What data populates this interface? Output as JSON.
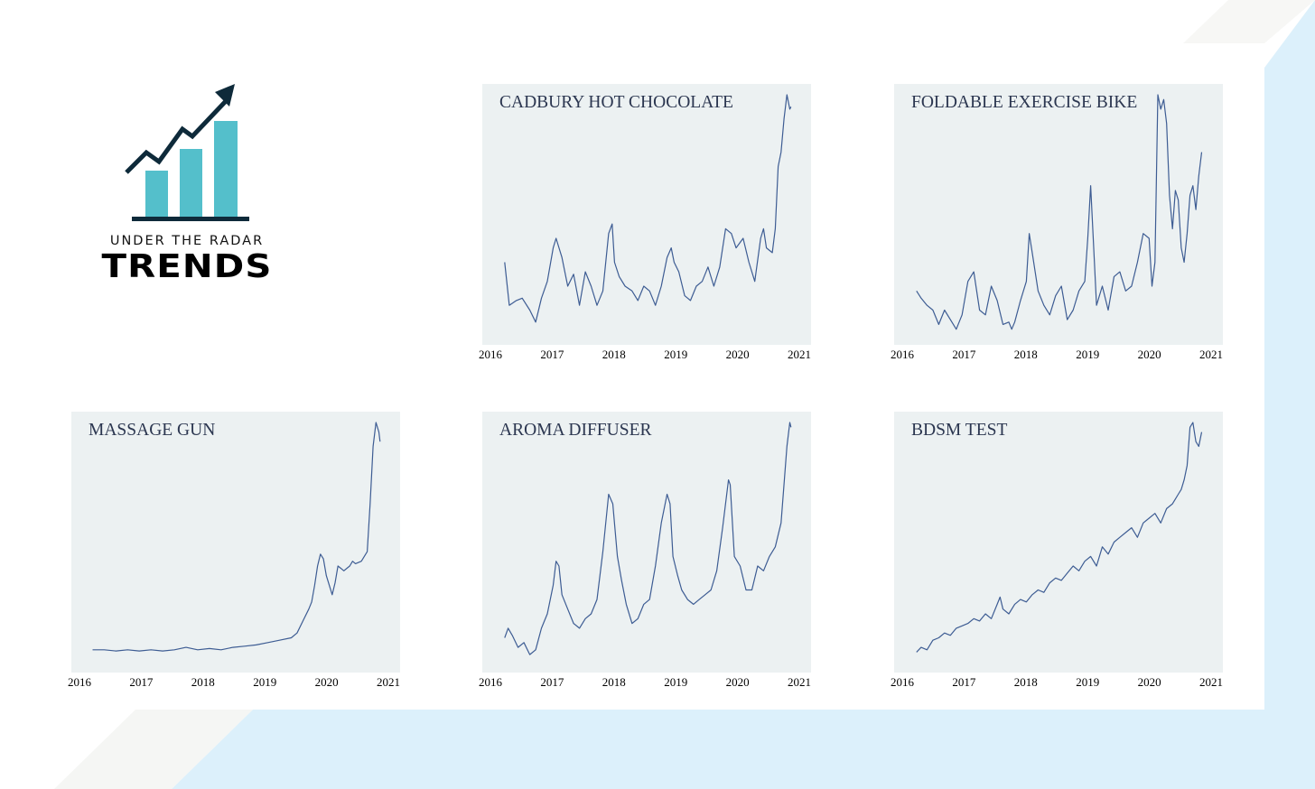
{
  "logo": {
    "subtitle": "UNDER THE RADAR",
    "title": "TRENDS",
    "bar_color": "#54bfcb",
    "arrow_color": "#0e2a3a"
  },
  "colors": {
    "panel_bg": "#ecf1f2",
    "line": "#3d5c93",
    "title_text": "#2b3650",
    "bg_blue": "#dcf0fb"
  },
  "chart_data": [
    {
      "type": "line",
      "title": "CADBURY HOT CHOCOLATE",
      "xlim": [
        2016,
        2021.1
      ],
      "ylim": [
        0,
        100
      ],
      "xticks": [
        "2016",
        "2017",
        "2018",
        "2019",
        "2020",
        "2021"
      ],
      "series": [
        {
          "x": [
            2016.12,
            2016.2,
            2016.32,
            2016.42,
            2016.55,
            2016.65,
            2016.75,
            2016.85,
            2016.95,
            2017.0,
            2017.1,
            2017.2,
            2017.3,
            2017.4,
            2017.5,
            2017.6,
            2017.7,
            2017.8,
            2017.9,
            2017.96,
            2018.0,
            2018.08,
            2018.18,
            2018.3,
            2018.4,
            2018.5,
            2018.6,
            2018.7,
            2018.8,
            2018.9,
            2018.97,
            2019.02,
            2019.1,
            2019.2,
            2019.3,
            2019.4,
            2019.5,
            2019.6,
            2019.7,
            2019.8,
            2019.9,
            2020.0,
            2020.08,
            2020.2,
            2020.3,
            2020.4,
            2020.5,
            2020.55,
            2020.6,
            2020.7,
            2020.75,
            2020.8,
            2020.85,
            2020.9,
            2020.95,
            2021.0,
            2021.02
          ],
          "y": [
            30,
            12,
            14,
            15,
            10,
            5,
            15,
            22,
            36,
            40,
            32,
            20,
            25,
            12,
            26,
            20,
            12,
            18,
            42,
            46,
            30,
            24,
            20,
            18,
            14,
            20,
            18,
            12,
            20,
            32,
            36,
            30,
            26,
            16,
            14,
            20,
            22,
            28,
            20,
            28,
            44,
            42,
            36,
            40,
            30,
            22,
            40,
            44,
            36,
            34,
            44,
            70,
            76,
            90,
            100,
            94,
            95
          ]
        }
      ]
    },
    {
      "type": "line",
      "title": "FOLDABLE EXERCISE BIKE",
      "xlim": [
        2016,
        2021.1
      ],
      "ylim": [
        0,
        100
      ],
      "xticks": [
        "2016",
        "2017",
        "2018",
        "2019",
        "2020",
        "2021"
      ],
      "series": [
        {
          "x": [
            2016.12,
            2016.2,
            2016.3,
            2016.4,
            2016.5,
            2016.6,
            2016.7,
            2016.8,
            2016.9,
            2017.0,
            2017.1,
            2017.2,
            2017.3,
            2017.4,
            2017.5,
            2017.6,
            2017.7,
            2017.75,
            2017.8,
            2017.9,
            2018.0,
            2018.05,
            2018.1,
            2018.2,
            2018.3,
            2018.4,
            2018.5,
            2018.6,
            2018.7,
            2018.8,
            2018.9,
            2019.0,
            2019.05,
            2019.1,
            2019.2,
            2019.3,
            2019.4,
            2019.5,
            2019.6,
            2019.7,
            2019.8,
            2019.9,
            2020.0,
            2020.1,
            2020.15,
            2020.2,
            2020.25,
            2020.3,
            2020.35,
            2020.4,
            2020.45,
            2020.5,
            2020.55,
            2020.6,
            2020.65,
            2020.7,
            2020.75,
            2020.8,
            2020.85,
            2020.9,
            2020.95,
            2021.0
          ],
          "y": [
            18,
            15,
            12,
            10,
            4,
            10,
            6,
            2,
            8,
            22,
            26,
            10,
            8,
            20,
            14,
            4,
            5,
            2,
            5,
            14,
            22,
            42,
            34,
            18,
            12,
            8,
            16,
            20,
            6,
            10,
            18,
            22,
            40,
            62,
            12,
            20,
            10,
            24,
            26,
            18,
            20,
            30,
            42,
            40,
            20,
            30,
            100,
            94,
            98,
            88,
            58,
            44,
            60,
            56,
            36,
            30,
            42,
            58,
            62,
            52,
            66,
            76
          ]
        }
      ]
    },
    {
      "type": "line",
      "title": "MASSAGE GUN",
      "xlim": [
        2016,
        2021.1
      ],
      "ylim": [
        0,
        100
      ],
      "xticks": [
        "2016",
        "2017",
        "2018",
        "2019",
        "2020",
        "2021"
      ],
      "series": [
        {
          "x": [
            2016.1,
            2016.3,
            2016.5,
            2016.7,
            2016.9,
            2017.1,
            2017.3,
            2017.5,
            2017.7,
            2017.9,
            2018.1,
            2018.3,
            2018.5,
            2018.7,
            2018.9,
            2019.1,
            2019.3,
            2019.5,
            2019.6,
            2019.7,
            2019.8,
            2019.85,
            2019.9,
            2019.95,
            2020.0,
            2020.05,
            2020.1,
            2020.2,
            2020.25,
            2020.3,
            2020.35,
            2020.4,
            2020.5,
            2020.55,
            2020.6,
            2020.7,
            2020.8,
            2020.85,
            2020.9,
            2020.95,
            2021.0,
            2021.02
          ],
          "y": [
            5,
            5,
            4.5,
            5,
            4.5,
            5,
            4.5,
            5,
            6,
            5,
            5.5,
            5,
            6,
            6.5,
            7,
            8,
            9,
            10,
            12,
            17,
            22,
            25,
            32,
            40,
            45,
            43,
            36,
            28,
            33,
            40,
            39,
            38,
            40,
            42,
            41,
            42,
            46,
            66,
            90,
            100,
            96,
            92
          ]
        }
      ]
    },
    {
      "type": "line",
      "title": "AROMA DIFFUSER",
      "xlim": [
        2016,
        2021.1
      ],
      "ylim": [
        0,
        100
      ],
      "xticks": [
        "2016",
        "2017",
        "2018",
        "2019",
        "2020",
        "2021"
      ],
      "series": [
        {
          "x": [
            2016.12,
            2016.18,
            2016.25,
            2016.35,
            2016.45,
            2016.55,
            2016.65,
            2016.75,
            2016.85,
            2016.95,
            2017.0,
            2017.05,
            2017.1,
            2017.2,
            2017.3,
            2017.4,
            2017.5,
            2017.6,
            2017.7,
            2017.8,
            2017.9,
            2017.97,
            2018.05,
            2018.12,
            2018.2,
            2018.3,
            2018.4,
            2018.5,
            2018.6,
            2018.7,
            2018.8,
            2018.9,
            2018.95,
            2019.0,
            2019.08,
            2019.15,
            2019.25,
            2019.35,
            2019.45,
            2019.55,
            2019.65,
            2019.75,
            2019.85,
            2019.95,
            2019.98,
            2020.05,
            2020.15,
            2020.25,
            2020.35,
            2020.45,
            2020.55,
            2020.65,
            2020.75,
            2020.85,
            2020.95,
            2021.0,
            2021.02
          ],
          "y": [
            10,
            14,
            11,
            6,
            8,
            3,
            5,
            14,
            20,
            32,
            42,
            40,
            28,
            22,
            16,
            14,
            18,
            20,
            26,
            46,
            70,
            66,
            44,
            34,
            24,
            16,
            18,
            24,
            26,
            40,
            58,
            70,
            66,
            44,
            36,
            30,
            26,
            24,
            26,
            28,
            30,
            38,
            56,
            76,
            74,
            44,
            40,
            30,
            30,
            40,
            38,
            44,
            48,
            58,
            90,
            100,
            98
          ]
        }
      ]
    },
    {
      "type": "line",
      "title": "BDSM TEST",
      "xlim": [
        2016,
        2021.1
      ],
      "ylim": [
        0,
        100
      ],
      "xticks": [
        "2016",
        "2017",
        "2018",
        "2019",
        "2020",
        "2021"
      ],
      "series": [
        {
          "x": [
            2016.12,
            2016.2,
            2016.3,
            2016.4,
            2016.5,
            2016.6,
            2016.7,
            2016.8,
            2016.9,
            2017.0,
            2017.1,
            2017.2,
            2017.3,
            2017.4,
            2017.5,
            2017.55,
            2017.6,
            2017.7,
            2017.8,
            2017.9,
            2018.0,
            2018.1,
            2018.2,
            2018.3,
            2018.4,
            2018.5,
            2018.6,
            2018.7,
            2018.8,
            2018.9,
            2019.0,
            2019.1,
            2019.2,
            2019.3,
            2019.4,
            2019.5,
            2019.6,
            2019.7,
            2019.8,
            2019.9,
            2020.0,
            2020.1,
            2020.2,
            2020.3,
            2020.4,
            2020.5,
            2020.55,
            2020.6,
            2020.65,
            2020.7,
            2020.75,
            2020.8,
            2020.85,
            2020.9,
            2020.95,
            2021.0
          ],
          "y": [
            4,
            6,
            5,
            9,
            10,
            12,
            11,
            14,
            15,
            16,
            18,
            17,
            20,
            18,
            24,
            27,
            22,
            20,
            24,
            26,
            25,
            28,
            30,
            29,
            33,
            35,
            34,
            37,
            40,
            38,
            42,
            44,
            40,
            48,
            45,
            50,
            52,
            54,
            56,
            52,
            58,
            60,
            62,
            58,
            64,
            66,
            68,
            70,
            72,
            76,
            82,
            98,
            100,
            92,
            90,
            96
          ]
        }
      ]
    }
  ]
}
